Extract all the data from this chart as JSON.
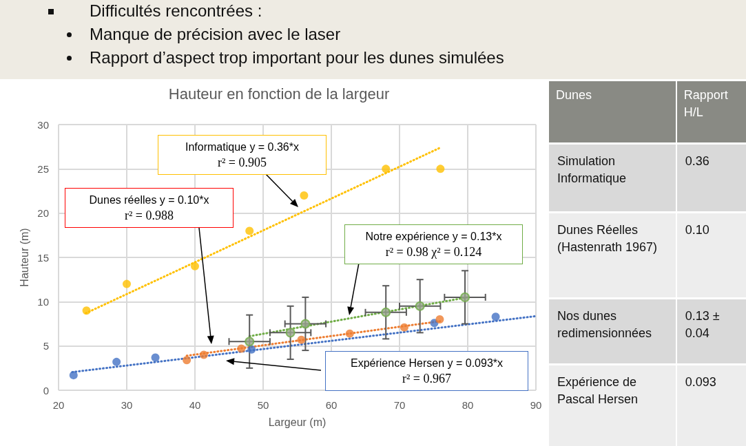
{
  "chart_data": [
    {
      "type": "other",
      "annotations": [
        "Difficultés rencontrées :",
        "Manque de précision avec le laser",
        "Rapport d’aspect trop important pour les dunes simulées"
      ]
    },
    {
      "type": "scatter",
      "title": "Hauteur en fonction de la largeur",
      "xlabel": "Largeur (m)",
      "ylabel": "Hauteur (m)",
      "xlim": [
        20,
        90
      ],
      "ylim": [
        0,
        30
      ],
      "xticks": [
        20,
        30,
        40,
        50,
        60,
        70,
        80,
        90
      ],
      "yticks": [
        0,
        5,
        10,
        15,
        20,
        25,
        30
      ],
      "grid": true,
      "marker": "circle",
      "series": [
        {
          "color": "#4472c4",
          "x": [
            22.2,
            28.5,
            34.2,
            48.3,
            75.1,
            84.1
          ],
          "values": [
            1.7,
            3.2,
            3.7,
            4.6,
            7.6,
            8.3
          ]
        },
        {
          "color": "#ed7d31",
          "x": [
            38.8,
            41.3,
            46.8,
            55.6,
            62.7,
            70.7,
            75.9
          ],
          "values": [
            3.4,
            4.0,
            4.7,
            5.7,
            6.4,
            7.1,
            8.0
          ]
        },
        {
          "color": "#ffc000",
          "x": [
            24.1,
            30.0,
            40.0,
            48.0,
            56.0,
            68.0,
            76.0
          ],
          "values": [
            9.0,
            12.0,
            14.0,
            18.0,
            22.0,
            25.0,
            25.0
          ]
        },
        {
          "color": "#98a68c",
          "x": [
            48.0,
            54.0,
            56.2,
            68.0,
            73.0,
            79.6
          ],
          "values": [
            5.5,
            6.5,
            7.5,
            8.8,
            9.5,
            10.5
          ],
          "errors": [
            3,
            3,
            3,
            3,
            3,
            3
          ],
          "xerrors": [
            3,
            3,
            3,
            3,
            3,
            3
          ]
        },
        {
          "type": "line",
          "color": "#4472c4",
          "marker": "none",
          "line_style": "dotted",
          "x": [
            22,
            90
          ],
          "values": [
            2.05,
            8.37
          ]
        },
        {
          "type": "line",
          "color": "#ed7d31",
          "marker": "none",
          "line_style": "dotted",
          "x": [
            38.8,
            76
          ],
          "values": [
            3.9,
            7.8
          ]
        },
        {
          "type": "line",
          "color": "#ffc000",
          "marker": "none",
          "line_style": "dotted",
          "x": [
            24,
            76
          ],
          "values": [
            8.7,
            27.4
          ]
        },
        {
          "type": "line",
          "color": "#70ad47",
          "marker": "none",
          "line_style": "dotted",
          "x": [
            48,
            80
          ],
          "values": [
            6.1,
            10.5
          ]
        }
      ],
      "annotations": [
        "Informatique  y = 0.36*x\nr² = 0.905",
        "Dunes réelles y = 0.10*x\nr² = 0.988",
        "Notre expérience y = 0.13*x\nr² = 0.98   χ² = 0.124",
        "Expérience Hersen y = 0.093*x\nr² = 0.967"
      ]
    },
    {
      "type": "other",
      "annotations": [
        "Dunes",
        "Rapport H/L",
        "Simulation Informatique",
        "0.36",
        "Dunes Réelles (Hastenrath 1967)",
        "0.10",
        "Nos dunes redimensionnées",
        "0.13 ± 0.04",
        "Expérience de Pascal Hersen",
        "0.093"
      ]
    }
  ]
}
